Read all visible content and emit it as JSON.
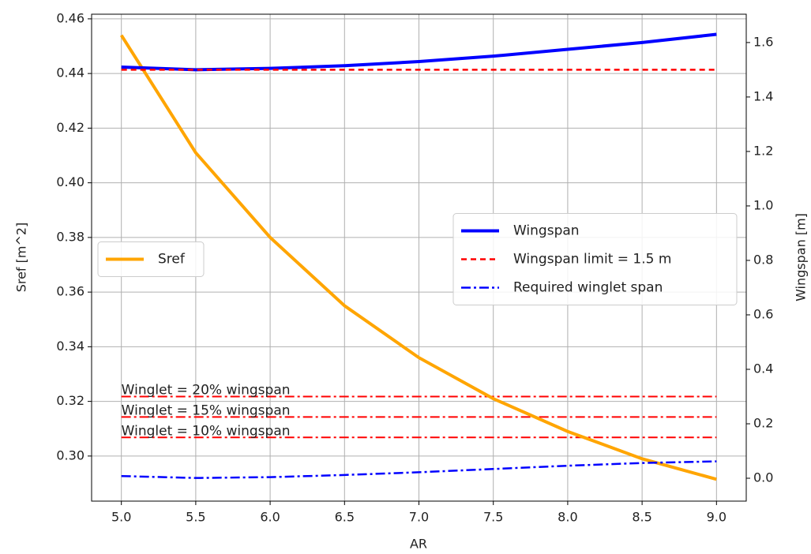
{
  "chart_data": {
    "type": "line",
    "x_label": "AR",
    "y_label": "Sref [m^2]",
    "y2_label": "Wingspan [m]",
    "x": [
      5.0,
      5.5,
      6.0,
      6.5,
      7.0,
      7.5,
      8.0,
      8.5,
      9.0
    ],
    "series": [
      {
        "name": "Sref",
        "color": "#ffa500",
        "linestyle": "solid",
        "axis": "y",
        "values": [
          0.454,
          0.411,
          0.38,
          0.355,
          0.336,
          0.321,
          0.309,
          0.299,
          0.2915
        ]
      },
      {
        "name": "Wingspan",
        "color": "#0000ff",
        "linestyle": "solid",
        "axis": "y2",
        "values": [
          1.51,
          1.5,
          1.505,
          1.515,
          1.53,
          1.55,
          1.575,
          1.6,
          1.63
        ]
      },
      {
        "name": "Wingspan limit = 1.5 m",
        "color": "#ff0000",
        "linestyle": "dashed",
        "axis": "y2",
        "values": [
          1.5,
          1.5,
          1.5,
          1.5,
          1.5,
          1.5,
          1.5,
          1.5,
          1.5
        ]
      },
      {
        "name": "Required winglet span",
        "color": "#0000ff",
        "linestyle": "dashdot",
        "axis": "y2",
        "values": [
          0.008,
          0.001,
          0.004,
          0.012,
          0.022,
          0.034,
          0.046,
          0.056,
          0.062
        ]
      }
    ],
    "reference_lines": [
      {
        "label": "Winglet = 20% wingspan",
        "value": 0.3,
        "color": "#ff0000",
        "linestyle": "dashdot",
        "axis": "y2"
      },
      {
        "label": "Winglet = 15% wingspan",
        "value": 0.225,
        "color": "#ff0000",
        "linestyle": "dashdot",
        "axis": "y2"
      },
      {
        "label": "Winglet = 10% wingspan",
        "value": 0.15,
        "color": "#ff0000",
        "linestyle": "dashdot",
        "axis": "y2"
      }
    ],
    "xlim": [
      4.8,
      9.2
    ],
    "xticks": [
      {
        "value": 5,
        "label": "5.0"
      },
      5.5,
      {
        "value": 6,
        "label": "6.0"
      },
      6.5,
      {
        "value": 7,
        "label": "7.0"
      },
      7.5,
      {
        "value": 8,
        "label": "8.0"
      },
      8.5,
      {
        "value": 9,
        "label": "9.0"
      }
    ],
    "ylim": [
      0.2835,
      0.4617
    ],
    "yticks": [
      {
        "value": 0.3,
        "label": "0.30"
      },
      0.32,
      0.34,
      0.36,
      0.38,
      {
        "value": 0.4,
        "label": "0.40"
      },
      0.42,
      0.44,
      0.46
    ],
    "y2lim": [
      -0.084,
      1.704
    ],
    "y2ticks": [
      {
        "value": 0,
        "label": "0.0"
      },
      0.2,
      0.4,
      0.6,
      0.8,
      {
        "value": 1,
        "label": "1.0"
      },
      1.2,
      1.4,
      1.6
    ],
    "grid": true,
    "legend": "center left",
    "legend2": "center right"
  }
}
